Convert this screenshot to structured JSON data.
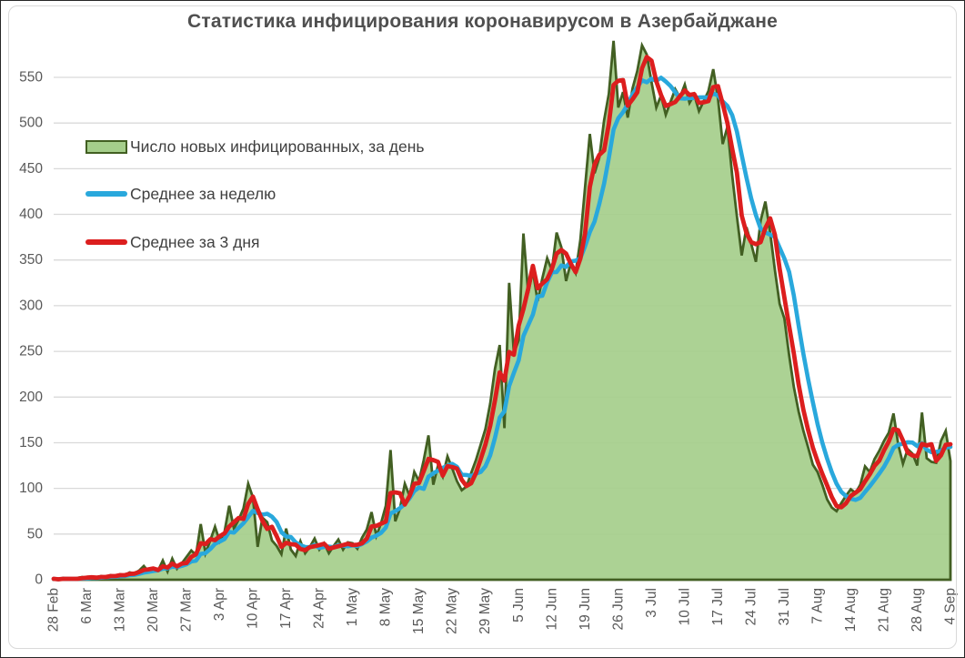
{
  "title": "Статистика инфицирования коронавирусом в Азербайджане",
  "chart_data": {
    "type": "area",
    "title": "Статистика инфицирования коронавирусом в Азербайджане",
    "xlabel": "",
    "ylabel": "",
    "ylim": [
      0,
      588
    ],
    "y_ticks": [
      0,
      50,
      100,
      150,
      200,
      250,
      300,
      350,
      400,
      450,
      500,
      550
    ],
    "x_tick_labels": [
      "28 Feb",
      "6 Mar",
      "13 Mar",
      "20 Mar",
      "27 Mar",
      "3 Apr",
      "10 Apr",
      "17 Apr",
      "24 Apr",
      "1 May",
      "8 May",
      "15 May",
      "22 May",
      "29 May",
      "5 Jun",
      "12 Jun",
      "19 Jun",
      "26 Jun",
      "3 Jul",
      "10 Jul",
      "17 Jul",
      "24 Jul",
      "31 Jul",
      "7 Aug",
      "14 Aug",
      "21 Aug",
      "28 Aug",
      "4 Sep"
    ],
    "x_label_every": 7,
    "x_range": [
      "28 Feb",
      "4 Sep"
    ],
    "grid": "horizontal",
    "legend_position": "top-left-inside",
    "gridline_color": "#D9D9D9",
    "axis_text_color": "#595959",
    "daily_new_cases": [
      1,
      0,
      2,
      1,
      0,
      2,
      3,
      2,
      3,
      2,
      4,
      3,
      5,
      4,
      6,
      5,
      8,
      7,
      10,
      15,
      9,
      13,
      10,
      21,
      9,
      23,
      12,
      18,
      25,
      32,
      27,
      61,
      29,
      43,
      58,
      42,
      52,
      81,
      56,
      66,
      78,
      105,
      90,
      36,
      68,
      63,
      43,
      37,
      28,
      56,
      33,
      26,
      42,
      29,
      36,
      45,
      33,
      40,
      29,
      37,
      44,
      33,
      41,
      40,
      34,
      46,
      55,
      74,
      48,
      62,
      81,
      142,
      64,
      78,
      105,
      92,
      118,
      108,
      131,
      158,
      104,
      125,
      113,
      135,
      122,
      108,
      98,
      102,
      117,
      131,
      148,
      165,
      193,
      231,
      257,
      166,
      325,
      248,
      262,
      379,
      314,
      338,
      305,
      330,
      352,
      339,
      380,
      364,
      327,
      347,
      336,
      372,
      430,
      488,
      445,
      462,
      503,
      532,
      590,
      517,
      534,
      506,
      538,
      557,
      585,
      575,
      545,
      517,
      530,
      509,
      523,
      537,
      528,
      542,
      522,
      531,
      513,
      524,
      535,
      559,
      527,
      477,
      496,
      443,
      398,
      355,
      386,
      368,
      348,
      393,
      414,
      380,
      339,
      302,
      286,
      246,
      211,
      184,
      163,
      145,
      126,
      118,
      104,
      88,
      79,
      75,
      84,
      92,
      99,
      95,
      104,
      124,
      118,
      132,
      141,
      152,
      161,
      182,
      148,
      127,
      143,
      138,
      125,
      183,
      133,
      129,
      128,
      152,
      163,
      130
    ],
    "series": [
      {
        "name": "Число новых инфицированных, за день",
        "type": "area",
        "source": "daily_new_cases",
        "fill": "#A5CE8B",
        "stroke": "#425F22"
      },
      {
        "name": "Среднее за неделю",
        "type": "line",
        "derived": "trailing_mean_7_of_daily",
        "color": "#29A8DC"
      },
      {
        "name": "Среднее за 3 дня",
        "type": "line",
        "derived": "trailing_mean_3_of_daily",
        "color": "#DC1E1E"
      }
    ]
  }
}
